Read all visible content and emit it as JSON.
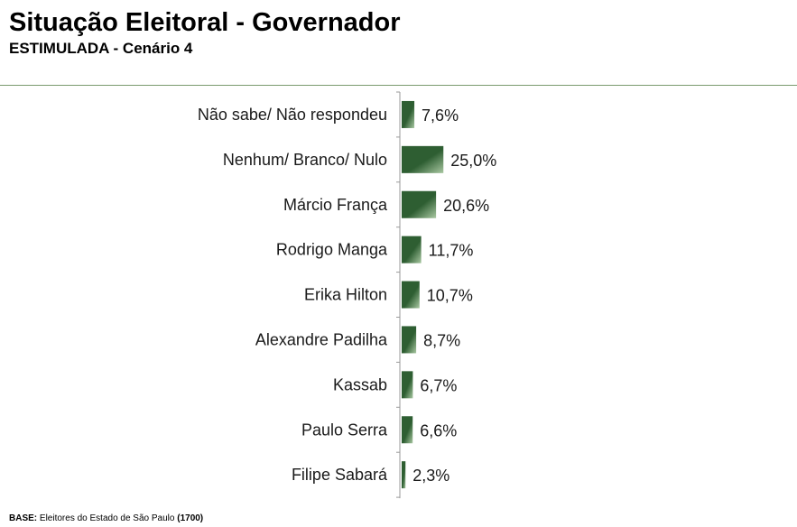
{
  "header": {
    "title": "Situação Eleitoral - Governador",
    "subtitle": "ESTIMULADA - Cenário 4"
  },
  "footer": {
    "base_label": "BASE:",
    "base_text": "Eleitores do Estado de São Paulo",
    "base_count": "(1700)"
  },
  "colors": {
    "bar_dark": "#2e5e32",
    "bar_light": "#a9c8a2",
    "axis": "#9a9a9a",
    "rule": "#7a9a6e"
  },
  "chart_data": {
    "type": "bar",
    "orientation": "horizontal",
    "title": "Situação Eleitoral - Governador",
    "subtitle": "ESTIMULADA - Cenário 4",
    "categories": [
      "Não sabe/ Não respondeu",
      "Nenhum/ Branco/ Nulo",
      "Márcio França",
      "Rodrigo Manga",
      "Erika Hilton",
      "Alexandre Padilha",
      "Kassab",
      "Paulo Serra",
      "Filipe Sabará"
    ],
    "values": [
      7.6,
      25.0,
      20.6,
      11.7,
      10.7,
      8.7,
      6.7,
      6.6,
      2.3
    ],
    "value_labels": [
      "7,6%",
      "25,0%",
      "20,6%",
      "11,7%",
      "10,7%",
      "8,7%",
      "6,7%",
      "6,6%",
      "2,3%"
    ],
    "unit": "%",
    "xlabel": "",
    "ylabel": "",
    "grid": false,
    "legend": "none"
  }
}
